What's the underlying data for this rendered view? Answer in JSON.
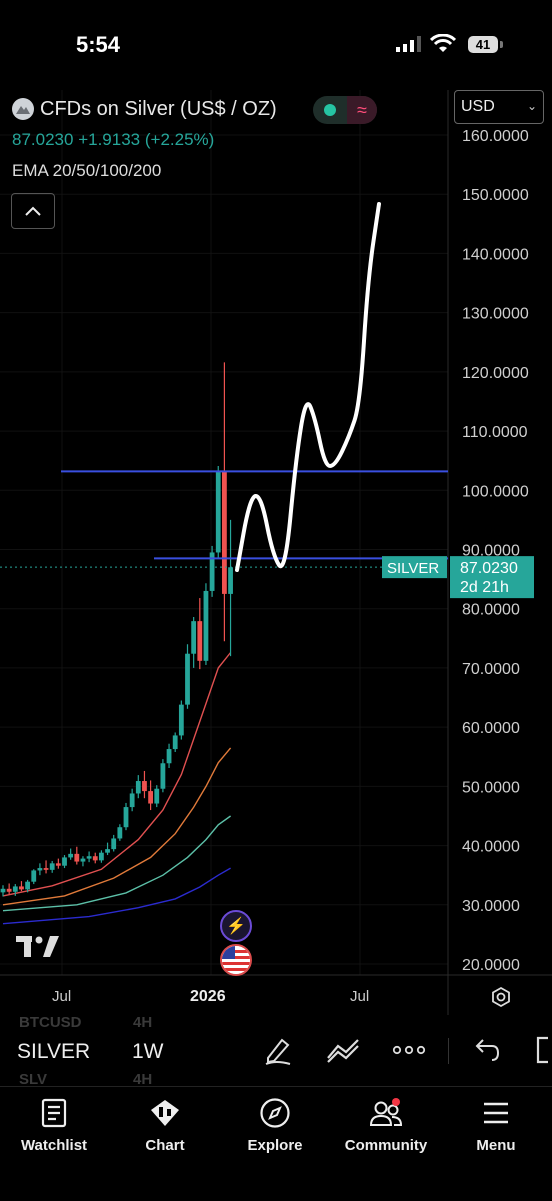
{
  "status_bar": {
    "time": "5:54",
    "battery": "41"
  },
  "header": {
    "title": "CFDs on Silver (US$ / OZ)",
    "currency": "USD",
    "last_price": "87.0230",
    "change": "+1.9133",
    "change_pct": "(+2.25%)",
    "indicator": "EMA 20/50/100/200"
  },
  "symbol_bar": {
    "symbol": "SILVER",
    "timeframe": "1W",
    "ghost_rows": [
      {
        "symbol": "BTCUSD",
        "timeframe": "4H"
      },
      {
        "symbol": "SLV",
        "timeframe": "4H"
      }
    ]
  },
  "tabs": [
    {
      "label": "Watchlist",
      "icon": "watchlist-icon"
    },
    {
      "label": "Chart",
      "icon": "chart-icon"
    },
    {
      "label": "Explore",
      "icon": "compass-icon"
    },
    {
      "label": "Community",
      "icon": "community-icon"
    },
    {
      "label": "Menu",
      "icon": "menu-icon"
    }
  ],
  "chart_data": {
    "type": "candlestick",
    "timeframe": "1W",
    "y_axis": {
      "ticks": [
        "160.0000",
        "150.0000",
        "140.0000",
        "130.0000",
        "120.0000",
        "110.0000",
        "100.0000",
        "90.0000",
        "80.0000",
        "70.0000",
        "60.0000",
        "50.0000",
        "40.0000",
        "30.0000",
        "20.0000"
      ],
      "ylim": [
        18,
        162
      ]
    },
    "x_axis": {
      "ticks": [
        "Jul",
        "2026",
        "Jul"
      ]
    },
    "price_label": {
      "symbol": "SILVER",
      "price": "87.0230",
      "countdown": "2d 21h",
      "value": 87.023
    },
    "horizontal_lines": [
      {
        "value": 103.2,
        "color": "#3a4fe0"
      },
      {
        "value": 88.5,
        "color": "#3a4fe0"
      }
    ],
    "candles": [
      {
        "o": 32.1,
        "h": 33.3,
        "l": 31.4,
        "c": 32.7
      },
      {
        "o": 32.7,
        "h": 33.6,
        "l": 31.8,
        "c": 32.2
      },
      {
        "o": 32.2,
        "h": 33.5,
        "l": 31.5,
        "c": 33.1
      },
      {
        "o": 33.1,
        "h": 34.0,
        "l": 32.3,
        "c": 32.6
      },
      {
        "o": 32.6,
        "h": 34.2,
        "l": 32.1,
        "c": 33.9
      },
      {
        "o": 33.9,
        "h": 36.0,
        "l": 33.5,
        "c": 35.8
      },
      {
        "o": 35.8,
        "h": 37.0,
        "l": 35.0,
        "c": 36.2
      },
      {
        "o": 36.2,
        "h": 37.5,
        "l": 35.3,
        "c": 35.9
      },
      {
        "o": 35.9,
        "h": 37.4,
        "l": 35.4,
        "c": 37.0
      },
      {
        "o": 37.0,
        "h": 37.8,
        "l": 36.1,
        "c": 36.6
      },
      {
        "o": 36.6,
        "h": 38.4,
        "l": 36.2,
        "c": 38.0
      },
      {
        "o": 38.0,
        "h": 39.5,
        "l": 37.6,
        "c": 38.6
      },
      {
        "o": 38.6,
        "h": 39.8,
        "l": 36.8,
        "c": 37.3
      },
      {
        "o": 37.3,
        "h": 38.2,
        "l": 36.5,
        "c": 37.8
      },
      {
        "o": 37.8,
        "h": 39.0,
        "l": 37.2,
        "c": 38.2
      },
      {
        "o": 38.2,
        "h": 38.8,
        "l": 37.0,
        "c": 37.5
      },
      {
        "o": 37.5,
        "h": 39.2,
        "l": 37.1,
        "c": 38.8
      },
      {
        "o": 38.8,
        "h": 40.5,
        "l": 38.4,
        "c": 39.4
      },
      {
        "o": 39.4,
        "h": 41.8,
        "l": 39.0,
        "c": 41.2
      },
      {
        "o": 41.2,
        "h": 43.6,
        "l": 40.8,
        "c": 43.1
      },
      {
        "o": 43.1,
        "h": 47.2,
        "l": 42.6,
        "c": 46.5
      },
      {
        "o": 46.5,
        "h": 49.6,
        "l": 45.8,
        "c": 48.8
      },
      {
        "o": 48.8,
        "h": 51.9,
        "l": 48.0,
        "c": 50.9
      },
      {
        "o": 50.9,
        "h": 52.6,
        "l": 48.0,
        "c": 49.2
      },
      {
        "o": 49.2,
        "h": 51.0,
        "l": 46.0,
        "c": 47.1
      },
      {
        "o": 47.1,
        "h": 50.2,
        "l": 46.5,
        "c": 49.6
      },
      {
        "o": 49.6,
        "h": 54.6,
        "l": 49.0,
        "c": 53.9
      },
      {
        "o": 53.9,
        "h": 57.2,
        "l": 53.1,
        "c": 56.3
      },
      {
        "o": 56.3,
        "h": 59.1,
        "l": 55.8,
        "c": 58.6
      },
      {
        "o": 58.6,
        "h": 64.5,
        "l": 57.9,
        "c": 63.8
      },
      {
        "o": 63.8,
        "h": 74.0,
        "l": 63.1,
        "c": 72.4
      },
      {
        "o": 72.4,
        "h": 78.6,
        "l": 70.0,
        "c": 77.9
      },
      {
        "o": 77.9,
        "h": 81.8,
        "l": 69.8,
        "c": 71.2
      },
      {
        "o": 71.2,
        "h": 84.3,
        "l": 70.5,
        "c": 83.0
      },
      {
        "o": 83.0,
        "h": 90.6,
        "l": 82.0,
        "c": 89.5
      },
      {
        "o": 89.5,
        "h": 104.1,
        "l": 88.6,
        "c": 103.3
      },
      {
        "o": 103.3,
        "h": 121.6,
        "l": 74.5,
        "c": 82.5
      },
      {
        "o": 82.5,
        "h": 95.0,
        "l": 72.0,
        "c": 87.0
      }
    ],
    "ema_series": [
      {
        "name": "EMA 20",
        "color": "#e05050",
        "values": [
          [
            0,
            31.5
          ],
          [
            8,
            33.2
          ],
          [
            16,
            36.0
          ],
          [
            22,
            41.0
          ],
          [
            26,
            46.0
          ],
          [
            29,
            52.0
          ],
          [
            31,
            58.0
          ],
          [
            33,
            64.0
          ],
          [
            35,
            70.0
          ],
          [
            37,
            72.6
          ]
        ]
      },
      {
        "name": "EMA 50",
        "color": "#e07a3a",
        "values": [
          [
            0,
            30.0
          ],
          [
            10,
            31.5
          ],
          [
            18,
            34.5
          ],
          [
            24,
            38.0
          ],
          [
            28,
            42.0
          ],
          [
            31,
            46.5
          ],
          [
            33,
            50.0
          ],
          [
            35,
            54.0
          ],
          [
            37,
            56.5
          ]
        ]
      },
      {
        "name": "EMA 100",
        "color": "#5cc0a8",
        "values": [
          [
            0,
            29.0
          ],
          [
            12,
            30.0
          ],
          [
            20,
            32.0
          ],
          [
            26,
            35.0
          ],
          [
            30,
            38.0
          ],
          [
            33,
            41.0
          ],
          [
            35,
            43.5
          ],
          [
            37,
            45.0
          ]
        ]
      },
      {
        "name": "EMA 200",
        "color": "#2b2bcf",
        "values": [
          [
            0,
            26.8
          ],
          [
            14,
            28.0
          ],
          [
            22,
            29.5
          ],
          [
            28,
            31.0
          ],
          [
            32,
            33.0
          ],
          [
            35,
            35.0
          ],
          [
            37,
            36.2
          ]
        ]
      }
    ],
    "drawing_path": [
      [
        237,
        570
      ],
      [
        250,
        497
      ],
      [
        261,
        495
      ],
      [
        273,
        556
      ],
      [
        285,
        574
      ],
      [
        296,
        458
      ],
      [
        306,
        396
      ],
      [
        315,
        418
      ],
      [
        325,
        466
      ],
      [
        335,
        466
      ],
      [
        349,
        437
      ],
      [
        360,
        404
      ],
      [
        368,
        278
      ],
      [
        379,
        204
      ]
    ]
  }
}
